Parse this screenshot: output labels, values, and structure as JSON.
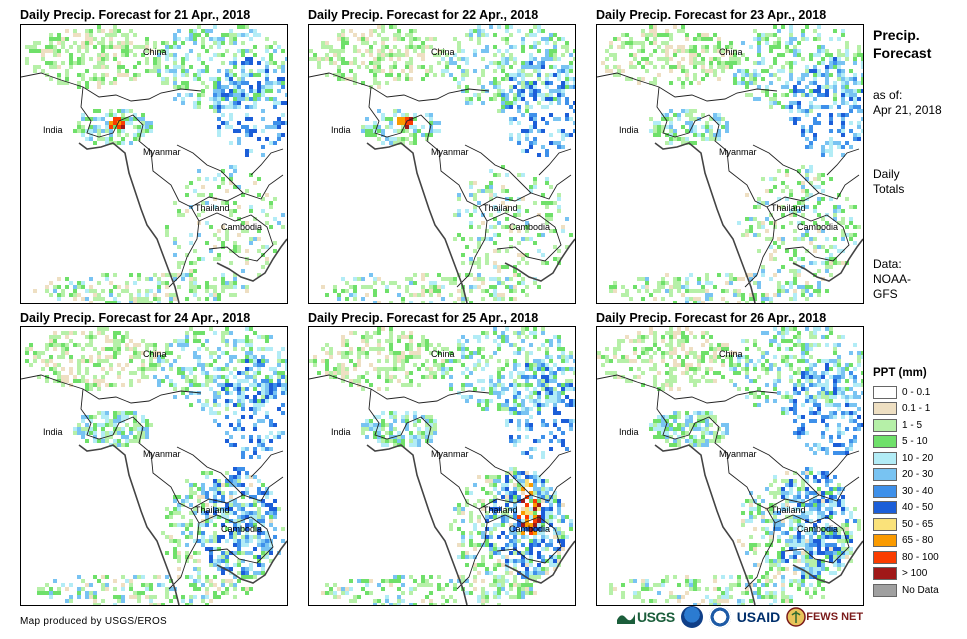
{
  "panels": [
    {
      "title": "Daily Precip. Forecast for 21 Apr., 2018"
    },
    {
      "title": "Daily Precip. Forecast for 22 Apr., 2018"
    },
    {
      "title": "Daily Precip. Forecast for 23 Apr., 2018"
    },
    {
      "title": "Daily Precip. Forecast for 24 Apr., 2018"
    },
    {
      "title": "Daily Precip. Forecast for 25 Apr., 2018"
    },
    {
      "title": "Daily Precip. Forecast for 26 Apr., 2018"
    }
  ],
  "map_labels": {
    "china": "China",
    "india": "India",
    "myanmar": "Myanmar",
    "thailand": "Thailand",
    "cambodia": "Cambodia"
  },
  "side": {
    "title_line1": "Precip.",
    "title_line2": "Forecast",
    "asof_line1": "as of:",
    "asof_line2": "Apr 21, 2018",
    "totals_line1": "Daily",
    "totals_line2": "Totals",
    "data_line1": "Data:",
    "data_line2": "NOAA-",
    "data_line3": "GFS"
  },
  "legend": {
    "title": "PPT (mm)",
    "items": [
      {
        "label": "0 - 0.1",
        "color": "#ffffff"
      },
      {
        "label": "0.1 - 1",
        "color": "#eedfc2"
      },
      {
        "label": "1 - 5",
        "color": "#b6f0a8"
      },
      {
        "label": "5 - 10",
        "color": "#6fe06a"
      },
      {
        "label": "10 - 20",
        "color": "#b2ecf6"
      },
      {
        "label": "20 - 30",
        "color": "#78c3f2"
      },
      {
        "label": "30 - 40",
        "color": "#3e90ea"
      },
      {
        "label": "40 - 50",
        "color": "#1c5ed8"
      },
      {
        "label": "50 - 65",
        "color": "#fae27a"
      },
      {
        "label": "65 - 80",
        "color": "#fa9a00"
      },
      {
        "label": "80 - 100",
        "color": "#fa3c00"
      },
      {
        "label": "> 100",
        "color": "#a01818"
      },
      {
        "label": "No Data",
        "color": "#a0a0a0"
      }
    ]
  },
  "credit": "Map produced by USGS/EROS",
  "logos": {
    "usgs": "USGS",
    "usaid": "USAID",
    "fews": "FEWS NET"
  }
}
